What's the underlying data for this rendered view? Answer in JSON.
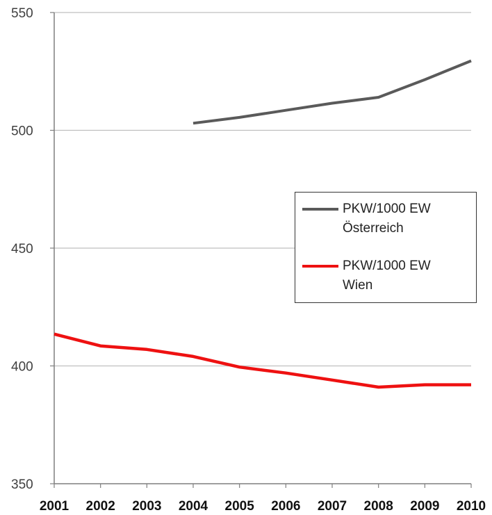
{
  "chart_data": {
    "type": "line",
    "x": [
      2001,
      2002,
      2003,
      2004,
      2005,
      2006,
      2007,
      2008,
      2009,
      2010
    ],
    "xticks": [
      "2001",
      "2002",
      "2003",
      "2004",
      "2005",
      "2006",
      "2007",
      "2008",
      "2009",
      "2010"
    ],
    "ylim": [
      350,
      550
    ],
    "yticks": [
      "350",
      "400",
      "450",
      "500",
      "550"
    ],
    "grid": true,
    "legend_position": "right",
    "series": [
      {
        "name": "PKW/1000 EW\nÖsterreich",
        "color": "#5a5a5a",
        "values": [
          null,
          null,
          null,
          503,
          505.5,
          508.5,
          511.5,
          514,
          521.5,
          529.5
        ]
      },
      {
        "name": "PKW/1000 EW\nWien",
        "color": "#ee1111",
        "values": [
          413.5,
          408.5,
          407,
          404,
          399.5,
          397,
          394,
          391,
          392,
          392
        ]
      }
    ]
  }
}
